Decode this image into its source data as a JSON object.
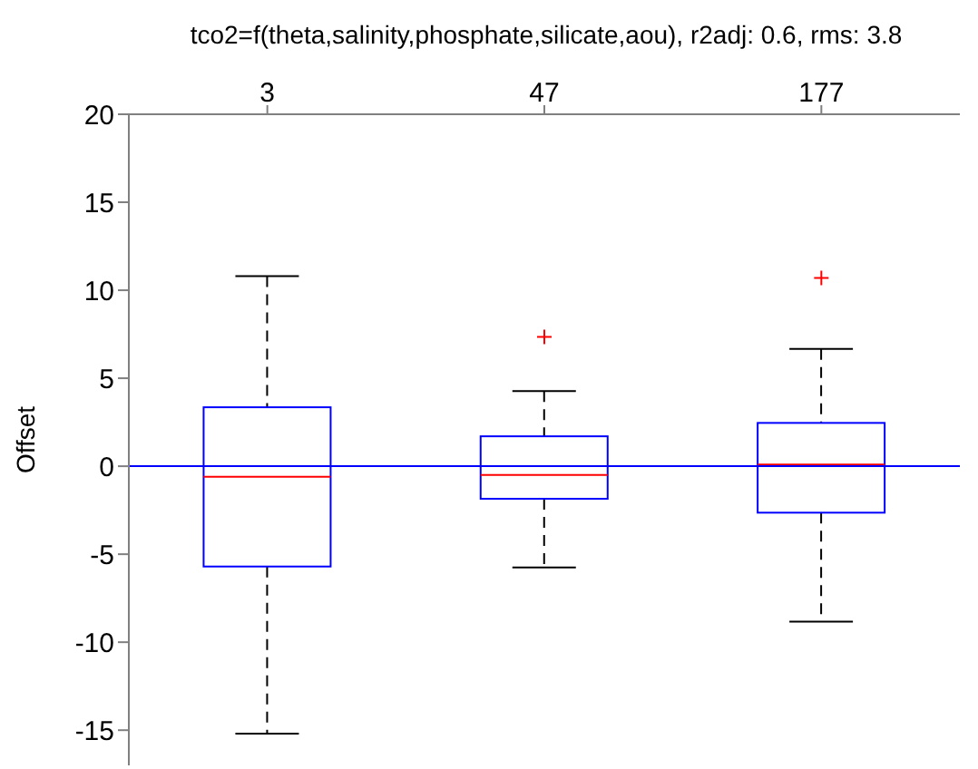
{
  "chart_data": {
    "type": "box",
    "title": "tco2=f(theta,salinity,phosphate,silicate,aou), r2adj: 0.6, rms: 3.8",
    "ylabel": "Offset",
    "categories": [
      "3",
      "47",
      "177"
    ],
    "series": [
      {
        "color": "#0000ff",
        "boxes": [
          {
            "low": -15.2,
            "q1": -5.7,
            "median": -0.6,
            "q3": 3.35,
            "high": 10.8
          },
          {
            "low": -5.75,
            "q1": -1.85,
            "median": -0.5,
            "q3": 1.7,
            "high": 4.27,
            "outliers": [
              7.35
            ]
          },
          {
            "low": -8.83,
            "q1": -2.64,
            "median": 0.1,
            "q3": 2.46,
            "high": 6.67,
            "outliers": [
              10.7
            ]
          }
        ]
      }
    ],
    "ylim": [
      -17,
      20
    ],
    "yticks": [
      -15,
      -10,
      -5,
      0,
      5,
      10,
      15,
      20
    ],
    "ref_lines": [
      {
        "axis": "y",
        "value": 0,
        "color": "#0000ff"
      }
    ],
    "grid": false,
    "legend": false,
    "marker": "cross"
  }
}
